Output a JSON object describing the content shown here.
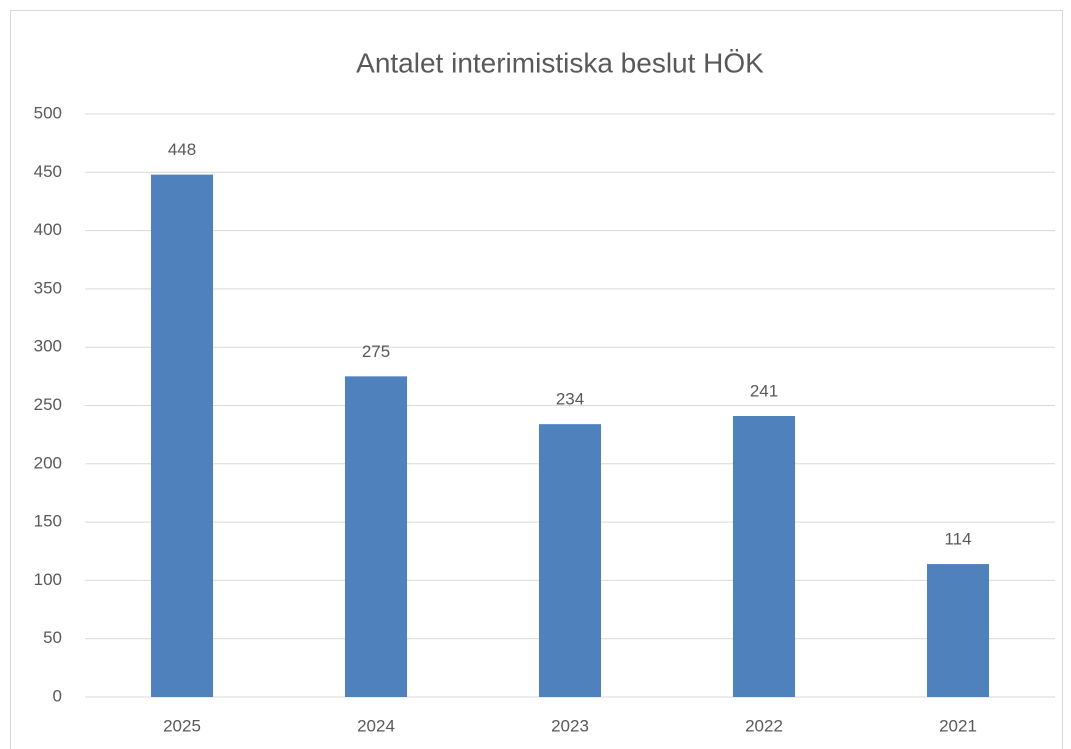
{
  "chart_data": {
    "type": "bar",
    "title": "Antalet interimistiska beslut HÖK",
    "categories": [
      "2025",
      "2024",
      "2023",
      "2022",
      "2021"
    ],
    "values": [
      448,
      275,
      234,
      241,
      114
    ],
    "color": "#4f81bd",
    "ylim": [
      0,
      500
    ],
    "yticks": [
      0,
      50,
      100,
      150,
      200,
      250,
      300,
      350,
      400,
      450,
      500
    ],
    "grid": true,
    "data_labels": true
  }
}
